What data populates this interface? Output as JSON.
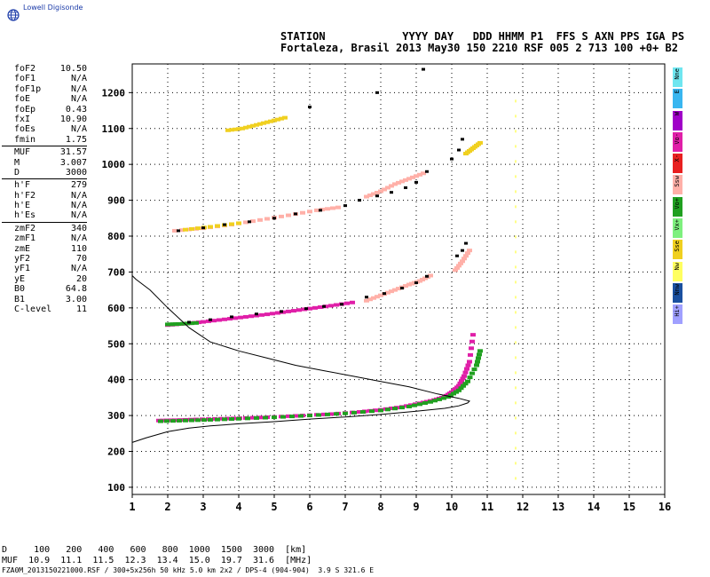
{
  "logo": {
    "text": "Lowell Digisonde"
  },
  "header": {
    "line1": "STATION            YYYY DAY   DDD HHMM P1  FFS S AXN PPS IGA PS",
    "line2": "Fortaleza, Brasil 2013 May30 150 2210 RSF 005 2 713 100 +0+ B2"
  },
  "params": [
    {
      "name": "foF2",
      "value": "10.50"
    },
    {
      "name": "foF1",
      "value": "N/A"
    },
    {
      "name": "foF1p",
      "value": "N/A"
    },
    {
      "name": "foE",
      "value": "N/A"
    },
    {
      "name": "foEp",
      "value": "0.43"
    },
    {
      "name": "fxI",
      "value": "10.90"
    },
    {
      "name": "foEs",
      "value": "N/A"
    },
    {
      "name": "fmin",
      "value": "1.75"
    },
    {
      "name": "MUF",
      "value": "31.57"
    },
    {
      "name": "M",
      "value": "3.007"
    },
    {
      "name": "D",
      "value": "3000"
    },
    {
      "name": "h'F",
      "value": "279"
    },
    {
      "name": "h'F2",
      "value": "N/A"
    },
    {
      "name": "h'E",
      "value": "N/A"
    },
    {
      "name": "h'Es",
      "value": "N/A"
    },
    {
      "name": "zmF2",
      "value": "340"
    },
    {
      "name": "zmF1",
      "value": "N/A"
    },
    {
      "name": "zmE",
      "value": "110"
    },
    {
      "name": "yF2",
      "value": "70"
    },
    {
      "name": "yF1",
      "value": "N/A"
    },
    {
      "name": "yE",
      "value": "20"
    },
    {
      "name": "B0",
      "value": "64.8"
    },
    {
      "name": "B1",
      "value": "3.00"
    },
    {
      "name": "C-level",
      "value": "11"
    }
  ],
  "legend": [
    {
      "label": "Nne",
      "color": "#6fe6f0"
    },
    {
      "label": "E",
      "color": "#39b6f0"
    },
    {
      "label": "W",
      "color": "#a000c8"
    },
    {
      "label": "Vo-",
      "color": "#e01fa8"
    },
    {
      "label": "X-",
      "color": "#e82020"
    },
    {
      "label": "Ssw",
      "color": "#ffb0a8"
    },
    {
      "label": "Vo+",
      "color": "#20a020"
    },
    {
      "label": "Vx+",
      "color": "#7ef07e"
    },
    {
      "label": "Sse",
      "color": "#f0d020"
    },
    {
      "label": "Nw",
      "color": "#ffff60"
    },
    {
      "label": "Nnw",
      "color": "#1a50a0"
    },
    {
      "label": "Hi+",
      "color": "#a0a0ff"
    }
  ],
  "muf_table": {
    "d_line": "D     100   200   400   600   800  1000  1500  3000  [km]",
    "muf_line": "MUF  10.9  11.1  11.5  12.3  13.4  15.0  19.7  31.6  [MHz]"
  },
  "footer": "FZA0M_2013150221000.RSF / 300+5x256h 50 kHz 5.0 km 2x2 / DPS-4 (904-904)  3.9 S 321.6 E",
  "chart_data": {
    "type": "scatter",
    "xlim": [
      1,
      16
    ],
    "ylim": [
      80,
      1280
    ],
    "x_ticks": [
      "1",
      "2",
      "3",
      "4",
      "5",
      "6",
      "7",
      "8",
      "9",
      "10",
      "11",
      "12",
      "13",
      "14",
      "15",
      "16"
    ],
    "y_ticks": [
      "100",
      "200",
      "300",
      "400",
      "500",
      "600",
      "700",
      "800",
      "900",
      "1000",
      "1100",
      "1200"
    ],
    "grid": true,
    "profile": {
      "x": [
        1.0,
        1.4,
        2.0,
        2.6,
        3.2,
        4.0,
        5.0,
        6.0,
        7.0,
        8.0,
        9.0,
        9.8,
        10.2,
        10.45,
        10.5,
        10.2,
        9.6,
        8.8,
        8.0,
        7.2,
        6.4,
        5.6,
        4.8,
        4.0,
        3.2,
        2.6,
        2.0,
        1.5,
        1.1,
        1.0
      ],
      "y": [
        225,
        238,
        255,
        265,
        271,
        277,
        283,
        290,
        296,
        303,
        312,
        320,
        327,
        335,
        340,
        348,
        360,
        380,
        395,
        410,
        425,
        440,
        460,
        480,
        505,
        545,
        600,
        650,
        680,
        690
      ]
    },
    "traces": [
      {
        "color": "#e01fa8",
        "x": [
          1.75,
          2.2,
          2.8,
          3.5,
          4.2,
          5.0,
          5.8,
          6.6,
          7.4,
          8.0,
          8.6,
          9.1,
          9.5,
          9.8,
          10.0,
          10.2,
          10.35,
          10.5,
          10.6
        ],
        "y": [
          286,
          287,
          289,
          291,
          293,
          296,
          300,
          304,
          310,
          316,
          324,
          334,
          343,
          352,
          365,
          383,
          410,
          450,
          525
        ]
      },
      {
        "color": "#20a020",
        "x": [
          1.8,
          2.5,
          3.2,
          4.0,
          5.0,
          6.0,
          7.0,
          8.0,
          8.8,
          9.4,
          9.9,
          10.2,
          10.45,
          10.7,
          10.8
        ],
        "y": [
          284,
          286,
          288,
          291,
          295,
          300,
          306,
          314,
          325,
          338,
          352,
          370,
          395,
          440,
          480
        ]
      },
      {
        "color": "#e01fa8",
        "x": [
          2.0,
          2.5,
          3.0,
          3.6,
          4.2,
          4.8,
          5.4,
          6.0,
          6.6,
          7.2
        ],
        "y": [
          552,
          556,
          561,
          568,
          575,
          582,
          590,
          598,
          606,
          615
        ]
      },
      {
        "color": "#20a020",
        "x": [
          2.0,
          2.3,
          2.8
        ],
        "y": [
          554,
          555,
          558
        ]
      },
      {
        "color": "#ffb0a8",
        "x": [
          7.6,
          8.0,
          8.4,
          8.8,
          9.1,
          9.4
        ],
        "y": [
          620,
          635,
          650,
          665,
          675,
          690
        ]
      },
      {
        "color": "#ffb0a8",
        "x": [
          2.2,
          3.0,
          3.8,
          4.6,
          5.4,
          6.2,
          6.8
        ],
        "y": [
          815,
          822,
          832,
          845,
          858,
          872,
          880
        ]
      },
      {
        "color": "#f0d020",
        "x": [
          2.5,
          3.2,
          4.0
        ],
        "y": [
          818,
          826,
          836
        ]
      },
      {
        "color": "#ffb0a8",
        "x": [
          7.6,
          8.0,
          8.4,
          8.8,
          9.2
        ],
        "y": [
          910,
          925,
          945,
          960,
          975
        ]
      },
      {
        "color": "#ffb0a8",
        "x": [
          10.1,
          10.3,
          10.5
        ],
        "y": [
          705,
          730,
          760
        ]
      },
      {
        "color": "#f0d020",
        "x": [
          3.7,
          4.1,
          4.5,
          4.9,
          5.3
        ],
        "y": [
          1095,
          1100,
          1110,
          1120,
          1130
        ]
      },
      {
        "color": "#f0d020",
        "x": [
          10.4,
          10.6,
          10.8
        ],
        "y": [
          1030,
          1045,
          1060
        ]
      }
    ],
    "black_marks": {
      "x": [
        2.6,
        3.2,
        3.8,
        4.5,
        5.2,
        5.9,
        6.4,
        6.9,
        7.6,
        8.1,
        8.6,
        9.0,
        9.3,
        10.15,
        10.3,
        10.4,
        2.3,
        3.0,
        3.6,
        4.3,
        5.0,
        5.6,
        6.3,
        7.0,
        7.4,
        7.9,
        8.3,
        8.7,
        9.0,
        9.3,
        10.0,
        10.2,
        10.3,
        6.0,
        7.9,
        9.2
      ],
      "y": [
        560,
        567,
        575,
        583,
        590,
        598,
        604,
        610,
        630,
        640,
        655,
        670,
        688,
        745,
        760,
        780,
        815,
        823,
        832,
        840,
        850,
        862,
        872,
        885,
        900,
        912,
        922,
        935,
        950,
        980,
        1015,
        1040,
        1070,
        1160,
        1200,
        1265
      ]
    },
    "frequency_marker": {
      "x": 11.8,
      "color": "#ffff60"
    }
  }
}
